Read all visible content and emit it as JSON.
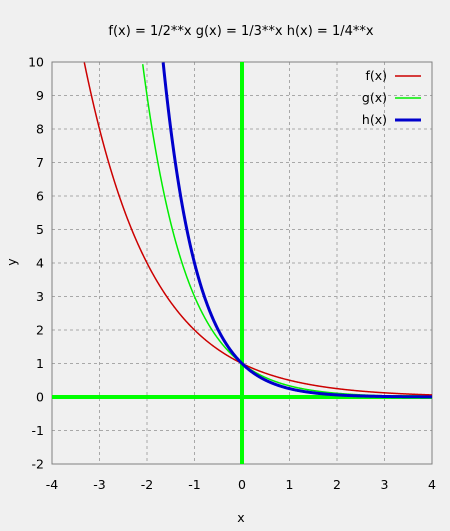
{
  "chart_data": {
    "type": "line",
    "title": "f(x) =  1/2**x  g(x) =  1/3**x  h(x) = 1/4**x",
    "xlabel": "x",
    "ylabel": "y",
    "xlim": [
      -4,
      4
    ],
    "ylim": [
      -2,
      10
    ],
    "x_ticks": [
      -4,
      -3,
      -2,
      -1,
      0,
      1,
      2,
      3,
      4
    ],
    "y_ticks": [
      -2,
      -1,
      0,
      1,
      2,
      3,
      4,
      5,
      6,
      7,
      8,
      9,
      10
    ],
    "grid": true,
    "legend_position": "top-right",
    "series": [
      {
        "name": "f(x)",
        "base": 2,
        "color": "#cc0000"
      },
      {
        "name": "g(x)",
        "base": 3,
        "color": "#00ee00"
      },
      {
        "name": "h(x)",
        "base": 4,
        "color": "#0000cc"
      }
    ],
    "zero_axes_color": "#00ff00"
  }
}
